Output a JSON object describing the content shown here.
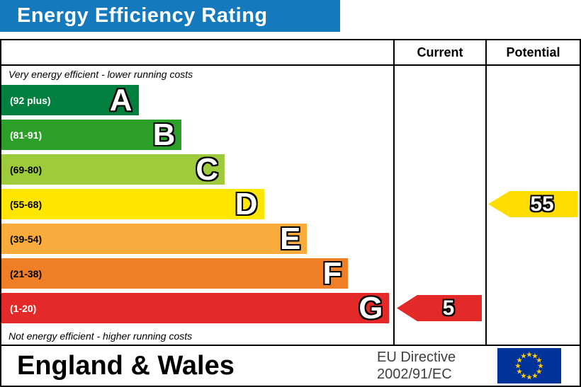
{
  "title": "Energy Efficiency Rating",
  "table": {
    "current_header": "Current",
    "potential_header": "Potential"
  },
  "notes": {
    "top": "Very energy efficient - lower running costs",
    "bottom": "Not energy efficient - higher running costs"
  },
  "bands": [
    {
      "letter": "A",
      "range": "(92 plus)",
      "color": "#007f3e",
      "range_text_color": "#ffffff",
      "width_pct": 35
    },
    {
      "letter": "B",
      "range": "(81-91)",
      "color": "#2c9f29",
      "range_text_color": "#ffffff",
      "width_pct": 46
    },
    {
      "letter": "C",
      "range": "(69-80)",
      "color": "#9dcb3c",
      "range_text_color": "#000000",
      "width_pct": 57
    },
    {
      "letter": "D",
      "range": "(55-68)",
      "color": "#ffe600",
      "range_text_color": "#000000",
      "width_pct": 67
    },
    {
      "letter": "E",
      "range": "(39-54)",
      "color": "#f9ab3c",
      "range_text_color": "#000000",
      "width_pct": 78
    },
    {
      "letter": "F",
      "range": "(21-38)",
      "color": "#ef7f27",
      "range_text_color": "#000000",
      "width_pct": 88.5
    },
    {
      "letter": "G",
      "range": "(1-20)",
      "color": "#e42a28",
      "range_text_color": "#ffffff",
      "width_pct": 99
    }
  ],
  "current": {
    "value": "5",
    "band": "G",
    "band_index": 6,
    "color": "#e42a28"
  },
  "potential": {
    "value": "55",
    "band": "D",
    "band_index": 3,
    "color": "#ffdd00"
  },
  "footer": {
    "region": "England & Wales",
    "directive_line1": "EU Directive",
    "directive_line2": "2002/91/EC"
  },
  "colors": {
    "header_bg": "#1479bd",
    "flag_bg": "#003399",
    "flag_star": "#ffcc00"
  },
  "icons": {
    "star": "★"
  },
  "chart_data": {
    "type": "bar",
    "title": "Energy Efficiency Rating",
    "categories": [
      "A",
      "B",
      "C",
      "D",
      "E",
      "F",
      "G"
    ],
    "band_ranges": [
      "92 plus",
      "81-91",
      "69-80",
      "55-68",
      "39-54",
      "21-38",
      "1-20"
    ],
    "values": [
      35,
      46,
      57,
      67,
      78,
      88.5,
      99
    ],
    "value_note": "bar lengths as percent of chart column width",
    "columns": [
      "Current",
      "Potential"
    ],
    "current": {
      "rating": 5,
      "band": "G"
    },
    "potential": {
      "rating": 55,
      "band": "D"
    },
    "annotations": [
      "Very energy efficient - lower running costs",
      "Not energy efficient - higher running costs"
    ],
    "footer": [
      "England & Wales",
      "EU Directive 2002/91/EC"
    ]
  }
}
